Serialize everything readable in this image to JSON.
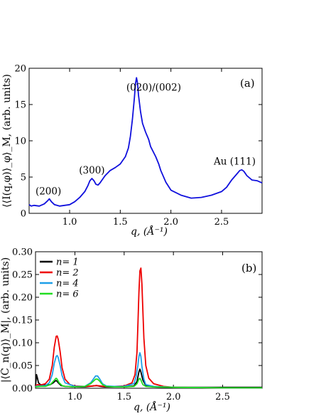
{
  "chart_data": [
    {
      "panel": "(a)",
      "type": "line",
      "xlabel": "q, (Å⁻¹)",
      "ylabel": "⟨⟨I(q,φ)⟩_φ⟩_M, (arb. units)",
      "xlim": [
        0.6,
        2.9
      ],
      "ylim": [
        0,
        20
      ],
      "xticks": [
        1.0,
        1.5,
        2.0,
        2.5
      ],
      "xtick_labels": [
        "1.0",
        "1.5",
        "2.0",
        "2.5"
      ],
      "yticks": [
        0,
        5,
        10,
        15,
        20
      ],
      "ytick_labels": [
        "0",
        "5",
        "10",
        "15",
        "20"
      ],
      "grid": false,
      "annotations": [
        {
          "text": "(200)",
          "x": 0.79,
          "y": 2.6
        },
        {
          "text": "(300)",
          "x": 1.22,
          "y": 5.5
        },
        {
          "text": "(020)/(002)",
          "x": 1.83,
          "y": 16.9
        },
        {
          "text": "Au (111)",
          "x": 2.63,
          "y": 6.7
        }
      ],
      "series": [
        {
          "color": "#1010dd",
          "x": [
            0.6,
            0.62,
            0.65,
            0.7,
            0.75,
            0.78,
            0.8,
            0.82,
            0.85,
            0.9,
            0.95,
            1.0,
            1.05,
            1.1,
            1.15,
            1.18,
            1.2,
            1.22,
            1.24,
            1.26,
            1.28,
            1.3,
            1.35,
            1.4,
            1.45,
            1.5,
            1.55,
            1.58,
            1.6,
            1.62,
            1.64,
            1.65,
            1.66,
            1.67,
            1.68,
            1.7,
            1.72,
            1.75,
            1.78,
            1.8,
            1.85,
            1.88,
            1.9,
            1.95,
            2.0,
            2.1,
            2.2,
            2.3,
            2.4,
            2.5,
            2.55,
            2.6,
            2.65,
            2.68,
            2.7,
            2.72,
            2.75,
            2.8,
            2.85,
            2.9
          ],
          "y": [
            1.2,
            1.0,
            1.1,
            1.0,
            1.3,
            1.7,
            2.0,
            1.6,
            1.2,
            1.0,
            1.1,
            1.2,
            1.6,
            2.2,
            3.0,
            3.8,
            4.5,
            4.8,
            4.5,
            4.0,
            3.9,
            4.2,
            5.2,
            5.9,
            6.3,
            6.8,
            7.8,
            9.0,
            10.6,
            13.0,
            16.0,
            17.8,
            18.7,
            18.0,
            16.3,
            14.0,
            12.4,
            11.2,
            10.2,
            9.2,
            7.8,
            6.8,
            5.9,
            4.3,
            3.2,
            2.5,
            2.1,
            2.2,
            2.5,
            3.0,
            3.6,
            4.6,
            5.4,
            5.9,
            6.0,
            5.8,
            5.2,
            4.6,
            4.5,
            4.2
          ]
        }
      ]
    },
    {
      "panel": "(b)",
      "type": "line",
      "xlabel": "q, (Å⁻¹)",
      "ylabel": "|⟨C̃_n(q)⟩_M|, (arb. units)",
      "xlim": [
        0.6,
        2.9
      ],
      "ylim": [
        0,
        0.3
      ],
      "xticks": [
        1.0,
        1.5,
        2.0,
        2.5
      ],
      "xtick_labels": [
        "1.0",
        "1.5",
        "2.0",
        "2.5"
      ],
      "yticks": [
        0,
        0.05,
        0.1,
        0.15,
        0.2,
        0.25,
        0.3
      ],
      "ytick_labels": [
        "0.00",
        "0.05",
        "0.10",
        "0.15",
        "0.20",
        "0.25",
        "0.30"
      ],
      "grid": false,
      "legend": "top-left",
      "series": [
        {
          "name": "n= 1",
          "color": "#000000",
          "x": [
            0.6,
            0.61,
            0.62,
            0.63,
            0.65,
            0.7,
            0.75,
            0.78,
            0.8,
            0.81,
            0.82,
            0.84,
            0.86,
            0.9,
            1.0,
            1.1,
            1.18,
            1.22,
            1.26,
            1.3,
            1.4,
            1.5,
            1.6,
            1.63,
            1.65,
            1.66,
            1.67,
            1.69,
            1.72,
            1.8,
            2.0,
            2.5,
            2.9
          ],
          "y": [
            0.005,
            0.03,
            0.022,
            0.012,
            0.008,
            0.007,
            0.008,
            0.012,
            0.016,
            0.017,
            0.015,
            0.01,
            0.006,
            0.004,
            0.003,
            0.003,
            0.005,
            0.006,
            0.004,
            0.003,
            0.003,
            0.003,
            0.005,
            0.015,
            0.036,
            0.042,
            0.036,
            0.018,
            0.006,
            0.003,
            0.002,
            0.002,
            0.002
          ]
        },
        {
          "name": "n= 2",
          "color": "#ee0000",
          "x": [
            0.6,
            0.62,
            0.65,
            0.7,
            0.74,
            0.77,
            0.79,
            0.81,
            0.82,
            0.83,
            0.85,
            0.87,
            0.9,
            0.95,
            1.0,
            1.1,
            1.18,
            1.22,
            1.26,
            1.3,
            1.4,
            1.5,
            1.58,
            1.61,
            1.63,
            1.64,
            1.65,
            1.66,
            1.67,
            1.68,
            1.69,
            1.7,
            1.72,
            1.75,
            1.8,
            1.9,
            2.0,
            2.5,
            2.9
          ],
          "y": [
            0.006,
            0.008,
            0.007,
            0.01,
            0.02,
            0.05,
            0.09,
            0.114,
            0.115,
            0.108,
            0.08,
            0.045,
            0.02,
            0.008,
            0.005,
            0.004,
            0.005,
            0.006,
            0.005,
            0.004,
            0.004,
            0.005,
            0.012,
            0.03,
            0.08,
            0.14,
            0.21,
            0.258,
            0.264,
            0.23,
            0.17,
            0.11,
            0.05,
            0.022,
            0.01,
            0.004,
            0.002,
            0.001,
            0.001
          ]
        },
        {
          "name": "n= 4",
          "color": "#1e9fe8",
          "x": [
            0.6,
            0.65,
            0.7,
            0.74,
            0.77,
            0.79,
            0.81,
            0.82,
            0.83,
            0.85,
            0.87,
            0.9,
            1.0,
            1.1,
            1.16,
            1.19,
            1.21,
            1.23,
            1.25,
            1.28,
            1.32,
            1.4,
            1.5,
            1.6,
            1.62,
            1.64,
            1.65,
            1.66,
            1.67,
            1.68,
            1.7,
            1.72,
            1.8,
            2.0,
            2.5,
            2.9
          ],
          "y": [
            0.004,
            0.005,
            0.006,
            0.012,
            0.03,
            0.055,
            0.07,
            0.072,
            0.068,
            0.05,
            0.028,
            0.012,
            0.004,
            0.004,
            0.012,
            0.021,
            0.027,
            0.027,
            0.021,
            0.01,
            0.005,
            0.004,
            0.004,
            0.01,
            0.025,
            0.05,
            0.07,
            0.078,
            0.07,
            0.048,
            0.02,
            0.008,
            0.004,
            0.002,
            0.001,
            0.001
          ]
        },
        {
          "name": "n= 6",
          "color": "#22dd22",
          "x": [
            0.6,
            0.65,
            0.7,
            0.75,
            0.78,
            0.8,
            0.81,
            0.82,
            0.84,
            0.87,
            0.9,
            1.0,
            1.1,
            1.16,
            1.19,
            1.21,
            1.23,
            1.25,
            1.28,
            1.32,
            1.4,
            1.5,
            1.6,
            1.63,
            1.65,
            1.66,
            1.67,
            1.69,
            1.72,
            1.8,
            2.0,
            2.5,
            2.9
          ],
          "y": [
            0.003,
            0.004,
            0.004,
            0.008,
            0.015,
            0.02,
            0.022,
            0.02,
            0.012,
            0.006,
            0.004,
            0.003,
            0.004,
            0.01,
            0.016,
            0.02,
            0.02,
            0.016,
            0.008,
            0.004,
            0.003,
            0.003,
            0.004,
            0.01,
            0.02,
            0.022,
            0.018,
            0.008,
            0.004,
            0.003,
            0.002,
            0.001,
            0.001
          ]
        }
      ]
    }
  ]
}
